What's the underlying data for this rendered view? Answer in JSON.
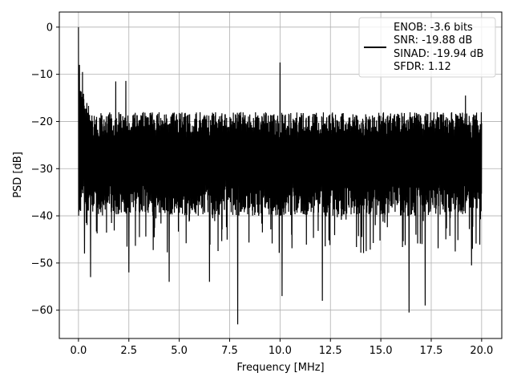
{
  "chart_data": {
    "type": "line",
    "xlabel": "Frequency [MHz]",
    "ylabel": "PSD [dB]",
    "xlim": [
      -0.95,
      21.0
    ],
    "ylim": [
      -66.0,
      3.2
    ],
    "xticks": [
      0.0,
      2.5,
      5.0,
      7.5,
      10.0,
      12.5,
      15.0,
      17.5,
      20.0
    ],
    "xtick_labels": [
      "0.0",
      "2.5",
      "5.0",
      "7.5",
      "10.0",
      "12.5",
      "15.0",
      "17.5",
      "20.0"
    ],
    "yticks": [
      0,
      -10,
      -20,
      -30,
      -40,
      -50,
      -60
    ],
    "ytick_labels": [
      "0",
      "−10",
      "−20",
      "−30",
      "−40",
      "−50",
      "−60"
    ],
    "grid": true,
    "legend_position": "top-right",
    "legend_lines": [
      "ENOB: -3.6 bits",
      "SNR: -19.88 dB",
      "SINAD: -19.94 dB",
      "SFDR: 1.12"
    ],
    "series": [
      {
        "color": "#000000",
        "x_range": [
          0.0,
          20.0
        ],
        "dc_peak_db": 0.0,
        "noise_floor_db": -25.0,
        "upper_envelope_db": -17.0,
        "lower_typical_db": -40.0,
        "peaks": [
          {
            "x": 0.0,
            "y": 0.0
          },
          {
            "x": 0.05,
            "y": -8.0
          },
          {
            "x": 0.2,
            "y": -9.5
          },
          {
            "x": 10.0,
            "y": -7.5
          },
          {
            "x": 1.85,
            "y": -11.5
          },
          {
            "x": 2.35,
            "y": -11.4
          },
          {
            "x": 19.2,
            "y": -14.5
          }
        ],
        "dips": [
          {
            "x": 0.3,
            "y": -48.0
          },
          {
            "x": 0.6,
            "y": -53.0
          },
          {
            "x": 2.5,
            "y": -52.0
          },
          {
            "x": 4.5,
            "y": -54.0
          },
          {
            "x": 6.5,
            "y": -54.0
          },
          {
            "x": 7.9,
            "y": -63.0
          },
          {
            "x": 10.1,
            "y": -57.0
          },
          {
            "x": 12.1,
            "y": -58.0
          },
          {
            "x": 16.4,
            "y": -60.5
          },
          {
            "x": 17.2,
            "y": -59.0
          },
          {
            "x": 19.5,
            "y": -50.5
          }
        ]
      }
    ]
  }
}
